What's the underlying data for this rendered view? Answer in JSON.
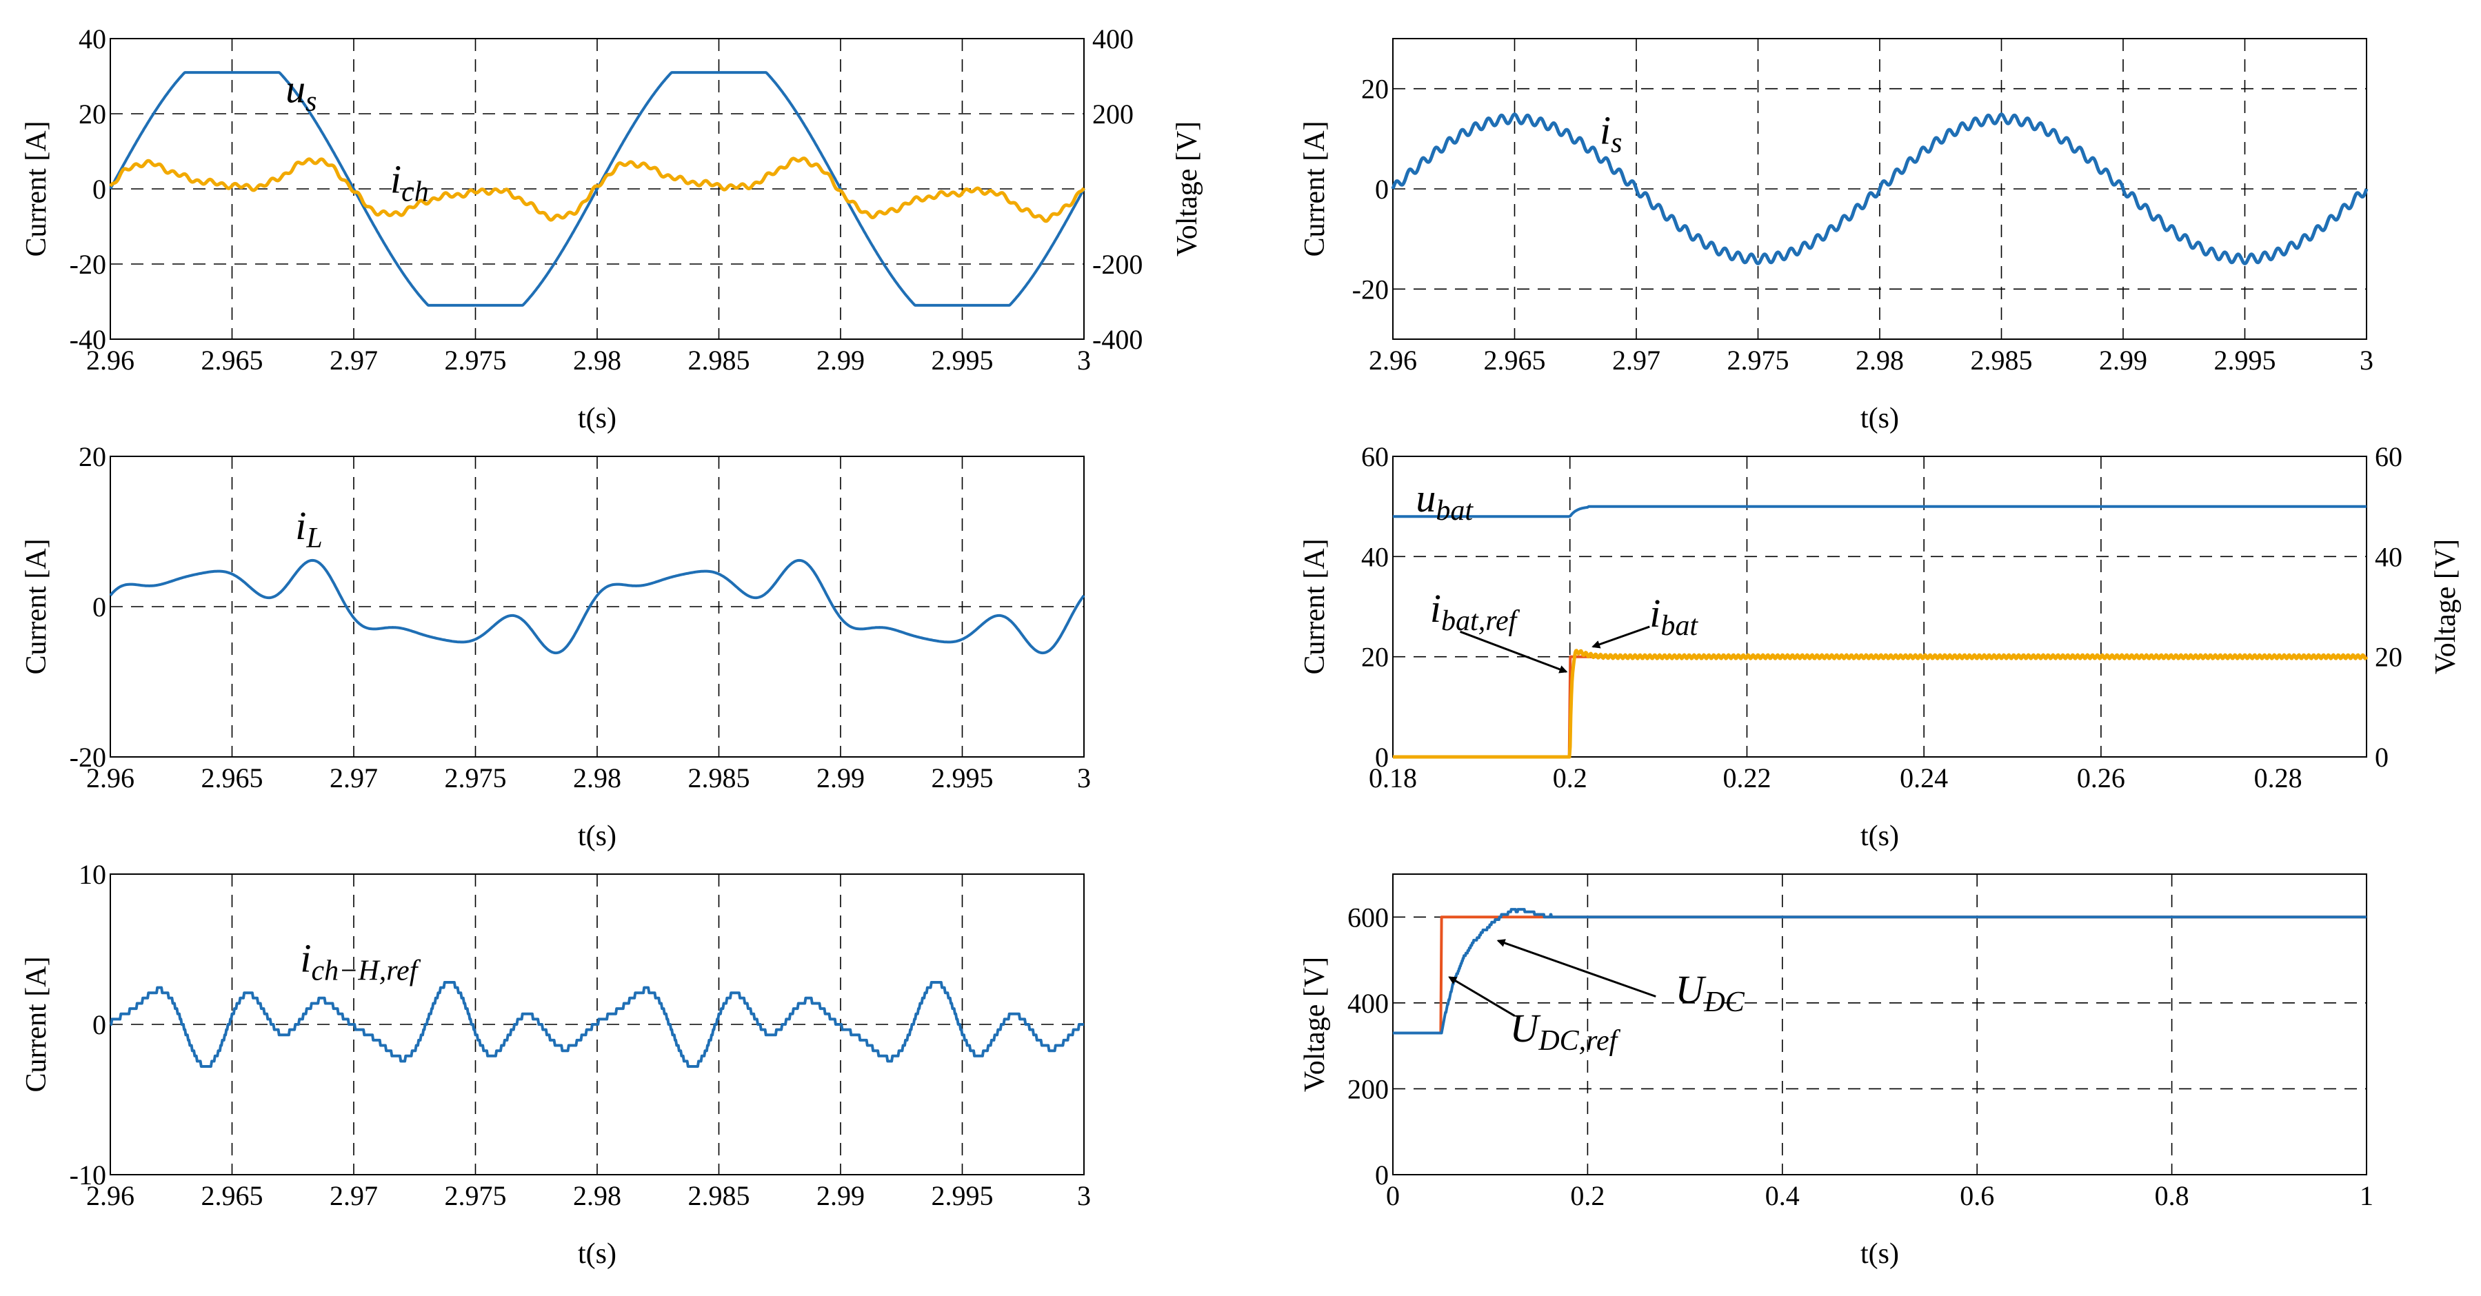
{
  "colors": {
    "blue": "#1f6fb5",
    "yellow": "#f2a900",
    "orange": "#e8531f"
  },
  "chart_data": [
    {
      "id": "c1",
      "type": "line",
      "xlabel": "t(s)",
      "ylabel": "Current [A]",
      "y2label": "Voltage [V]",
      "xlim": [
        2.96,
        3.0
      ],
      "ylim": [
        -40,
        40
      ],
      "y2lim": [
        -400,
        400
      ],
      "xticks": [
        2.96,
        2.965,
        2.97,
        2.975,
        2.98,
        2.985,
        2.99,
        2.995,
        3.0
      ],
      "xticklabels": [
        "2.96",
        "2.965",
        "2.97",
        "2.975",
        "2.98",
        "2.985",
        "2.99",
        "2.995",
        "3"
      ],
      "yticks": [
        -40,
        -20,
        0,
        20,
        40
      ],
      "yticklabels": [
        "-40",
        "-20",
        "0",
        "20",
        "40"
      ],
      "y2ticks": [
        -400,
        -200,
        200,
        400
      ],
      "y2ticklabels": [
        "-400",
        "-200",
        "200",
        "400"
      ],
      "series": [
        {
          "name": "u_s",
          "axis": "y2",
          "color": "blue",
          "kind": "vs",
          "amplitude_V": 310,
          "frequency_Hz": 50
        },
        {
          "name": "i_ch",
          "axis": "y",
          "color": "yellow",
          "kind": "ich",
          "peak_A": 11,
          "frequency_Hz": 50
        }
      ],
      "annotations": [
        {
          "base": "u",
          "sub": "s",
          "at": [
            2.9672,
            23
          ]
        },
        {
          "base": "i",
          "sub": "ch",
          "at": [
            2.9715,
            -1
          ]
        }
      ]
    },
    {
      "id": "c2",
      "type": "line",
      "xlabel": "t(s)",
      "ylabel": "Current [A]",
      "xlim": [
        2.96,
        3.0
      ],
      "ylim": [
        -30,
        30
      ],
      "xticks": [
        2.96,
        2.965,
        2.97,
        2.975,
        2.98,
        2.985,
        2.99,
        2.995,
        3.0
      ],
      "xticklabels": [
        "2.96",
        "2.965",
        "2.97",
        "2.975",
        "2.98",
        "2.985",
        "2.99",
        "2.995",
        "3"
      ],
      "yticks": [
        -20,
        0,
        20
      ],
      "yticklabels": [
        "-20",
        "0",
        "20"
      ],
      "series": [
        {
          "name": "i_s",
          "axis": "y",
          "color": "blue",
          "kind": "is",
          "peak_A": 14,
          "frequency_Hz": 50
        }
      ],
      "annotations": [
        {
          "base": "i",
          "sub": "s",
          "at": [
            2.9685,
            9
          ]
        }
      ]
    },
    {
      "id": "c3",
      "type": "line",
      "xlabel": "t(s)",
      "ylabel": "Current [A]",
      "xlim": [
        2.96,
        3.0
      ],
      "ylim": [
        -20,
        20
      ],
      "xticks": [
        2.96,
        2.965,
        2.97,
        2.975,
        2.98,
        2.985,
        2.99,
        2.995,
        3.0
      ],
      "xticklabels": [
        "2.96",
        "2.965",
        "2.97",
        "2.975",
        "2.98",
        "2.985",
        "2.99",
        "2.995",
        "3"
      ],
      "yticks": [
        -20,
        0,
        20
      ],
      "yticklabels": [
        "-20",
        "0",
        "20"
      ],
      "series": [
        {
          "name": "i_L",
          "axis": "y",
          "color": "blue",
          "kind": "il",
          "peak_A": 8,
          "frequency_Hz": 50
        }
      ],
      "annotations": [
        {
          "base": "i",
          "sub": "L",
          "at": [
            2.9676,
            9
          ]
        }
      ]
    },
    {
      "id": "c4",
      "type": "line",
      "xlabel": "t(s)",
      "ylabel": "Current [A]",
      "y2label": "Voltage [V]",
      "xlim": [
        0.18,
        0.29
      ],
      "ylim": [
        0,
        60
      ],
      "y2lim": [
        0,
        60
      ],
      "xticks": [
        0.18,
        0.2,
        0.22,
        0.24,
        0.26,
        0.28
      ],
      "xticklabels": [
        "0.18",
        "0.2",
        "0.22",
        "0.24",
        "0.26",
        "0.28"
      ],
      "yticks": [
        0,
        20,
        40,
        60
      ],
      "yticklabels": [
        "0",
        "20",
        "40",
        "60"
      ],
      "y2ticks": [
        0,
        20,
        40,
        60
      ],
      "y2ticklabels": [
        "0",
        "20",
        "40",
        "60"
      ],
      "series": [
        {
          "name": "u_bat",
          "axis": "y2",
          "color": "blue",
          "kind": "vbat",
          "before_V": 48,
          "after_V": 50,
          "step_t": 0.2
        },
        {
          "name": "i_bat,ref",
          "axis": "y",
          "color": "orange",
          "kind": "stepref",
          "before_A": 0,
          "after_A": 20,
          "step_t": 0.2
        },
        {
          "name": "i_bat",
          "axis": "y",
          "color": "yellow",
          "kind": "ibat",
          "before_A": 0,
          "after_A": 20,
          "overshoot_A": 23,
          "step_t": 0.2
        }
      ],
      "annotations": [
        {
          "base": "u",
          "sub": "bat",
          "at": [
            0.1826,
            49
          ]
        },
        {
          "base": "i",
          "sub": "bat,ref",
          "at": [
            0.1842,
            27
          ]
        },
        {
          "base": "i",
          "sub": "bat",
          "at": [
            0.209,
            26
          ]
        }
      ],
      "arrows": [
        {
          "from": [
            0.1876,
            25
          ],
          "to": [
            0.1996,
            17
          ]
        },
        {
          "from": [
            0.209,
            26
          ],
          "to": [
            0.2026,
            22
          ]
        }
      ]
    },
    {
      "id": "c5",
      "type": "line",
      "xlabel": "t(s)",
      "ylabel": "Current [A]",
      "xlim": [
        2.96,
        3.0
      ],
      "ylim": [
        -10,
        10
      ],
      "xticks": [
        2.96,
        2.965,
        2.97,
        2.975,
        2.98,
        2.985,
        2.99,
        2.995,
        3.0
      ],
      "xticklabels": [
        "2.96",
        "2.965",
        "2.97",
        "2.975",
        "2.98",
        "2.985",
        "2.99",
        "2.995",
        "3"
      ],
      "yticks": [
        -10,
        0,
        10
      ],
      "yticklabels": [
        "-10",
        "0",
        "10"
      ],
      "series": [
        {
          "name": "i_ch-H,ref",
          "axis": "y",
          "color": "blue",
          "kind": "ichh",
          "peak_A": 3.4,
          "frequency_Hz": 50
        }
      ],
      "annotations": [
        {
          "base": "i",
          "sub": "ch−H,ref",
          "at": [
            2.9678,
            3.5
          ]
        }
      ]
    },
    {
      "id": "c6",
      "type": "line",
      "xlabel": "t(s)",
      "ylabel": "Voltage [V]",
      "xlim": [
        0,
        1
      ],
      "ylim": [
        0,
        700
      ],
      "xticks": [
        0,
        0.2,
        0.4,
        0.6,
        0.8,
        1.0
      ],
      "xticklabels": [
        "0",
        "0.2",
        "0.4",
        "0.6",
        "0.8",
        "1"
      ],
      "yticks": [
        0,
        200,
        400,
        600
      ],
      "yticklabels": [
        "0",
        "200",
        "400",
        "600"
      ],
      "series": [
        {
          "name": "U_DC,ref",
          "axis": "y",
          "color": "orange",
          "kind": "dcref",
          "before_V": 330,
          "after_V": 600,
          "step_t": 0.05
        },
        {
          "name": "U_DC",
          "axis": "y",
          "color": "blue",
          "kind": "udc",
          "start_V": 330,
          "final_V": 600,
          "overshoot_V": 625
        }
      ],
      "annotations": [
        {
          "base": "U",
          "sub": "DC",
          "at": [
            0.29,
            400
          ]
        },
        {
          "base": "U",
          "sub": "DC,ref",
          "at": [
            0.12,
            310
          ]
        }
      ],
      "arrows": [
        {
          "from": [
            0.27,
            415
          ],
          "to": [
            0.108,
            545
          ]
        },
        {
          "from": [
            0.125,
            370
          ],
          "to": [
            0.058,
            460
          ]
        }
      ]
    }
  ]
}
